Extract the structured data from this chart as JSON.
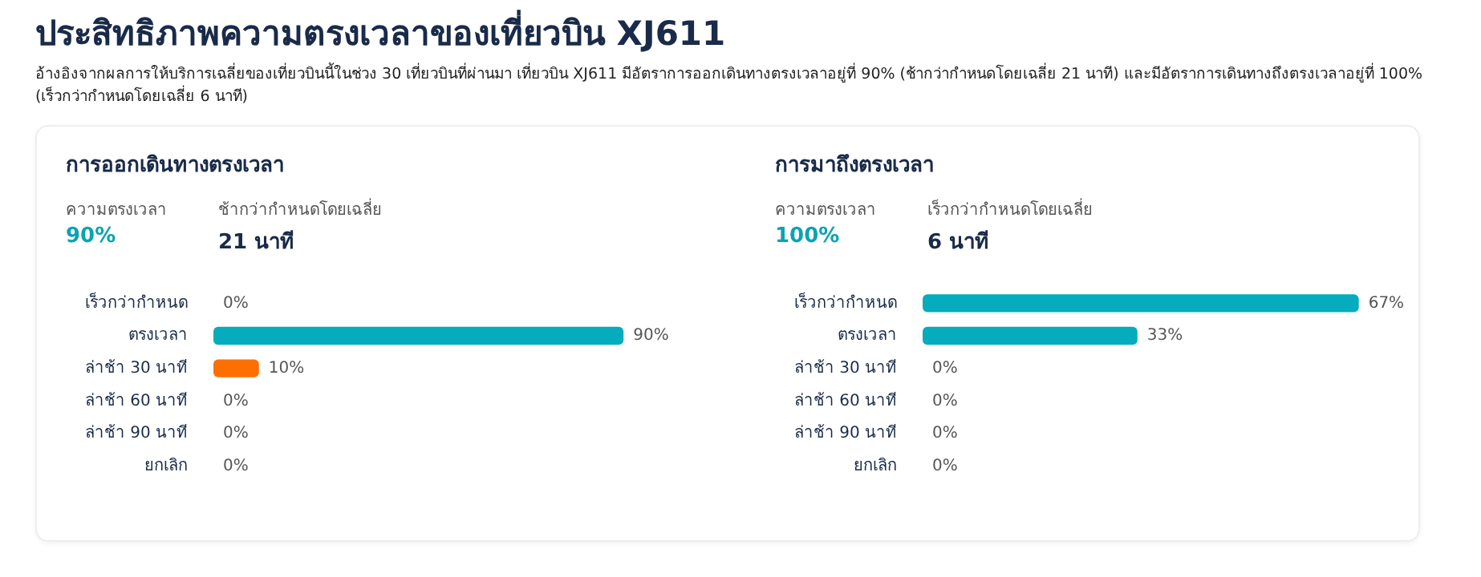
{
  "chart_data": [
    {
      "type": "other",
      "title": "ประสิทธิภาพความตรงเวลาของเที่ยวบิน XJ611",
      "subtitle": "อ้างอิงจากผลการให้บริการเฉลี่ยของเที่ยวบินนี้ในช่วง 30 เที่ยวบินที่ผ่านมา เที่ยวบิน XJ611 มีอัตราการออกเดินทางตรงเวลาอยู่ที่ 90% (ช้ากว่ากำหนดโดยเฉลี่ย 21 นาที) และมีอัตราการเดินทางถึงตรงเวลาอยู่ที่ 100% (เร็วกว่ากำหนดโดยเฉลี่ย 6 นาที)"
    },
    {
      "type": "bar",
      "orientation": "horizontal",
      "title": "การออกเดินทางตรงเวลา",
      "annotations": [
        "ความตรงเวลา",
        "ช้ากว่ากำหนดโดยเฉลี่ย",
        "90%",
        "21 นาที"
      ],
      "categories": [
        "เร็วกว่ากำหนด",
        "ตรงเวลา",
        "ล่าช้า 30 นาที",
        "ล่าช้า 60 นาที",
        "ล่าช้า 90 นาที",
        "ยกเลิก"
      ],
      "values": [
        0,
        90,
        10,
        0,
        0,
        0
      ],
      "colors": [
        "#05acbd",
        "#05acbd",
        "#ff6f00",
        "#05acbd",
        "#05acbd",
        "#05acbd"
      ],
      "value_labels": [
        "0%",
        "90%",
        "10%",
        "0%",
        "0%",
        "0%"
      ],
      "tick_labels": "y"
    },
    {
      "type": "bar",
      "orientation": "horizontal",
      "title": "การมาถึงตรงเวลา",
      "annotations": [
        "ความตรงเวลา",
        "เร็วกว่ากำหนดโดยเฉลี่ย",
        "100%",
        "6 นาที"
      ],
      "categories": [
        "เร็วกว่ากำหนด",
        "ตรงเวลา",
        "ล่าช้า 30 นาที",
        "ล่าช้า 60 นาที",
        "ล่าช้า 90 นาที",
        "ยกเลิก"
      ],
      "values": [
        67,
        33,
        0,
        0,
        0,
        0
      ],
      "colors": [
        "#05acbd",
        "#05acbd",
        "#05acbd",
        "#05acbd",
        "#05acbd",
        "#05acbd"
      ],
      "value_labels": [
        "67%",
        "33%",
        "0%",
        "0%",
        "0%",
        "0%"
      ],
      "tick_labels": "y"
    }
  ]
}
